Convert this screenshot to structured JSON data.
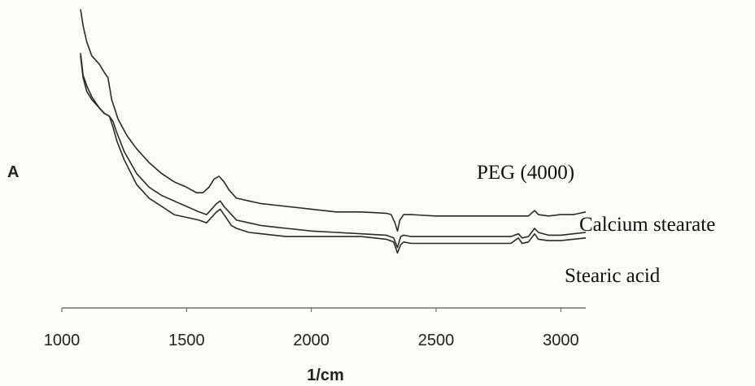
{
  "chart_data": {
    "type": "line",
    "title": "",
    "xlabel": "1/cm",
    "ylabel": "A",
    "xlim": [
      1000,
      3100
    ],
    "xticks": [
      1000,
      1500,
      2000,
      2500,
      3000
    ],
    "grid": false,
    "y_units": "relative absorbance (no y-axis scale printed)",
    "colors": {
      "line": "#2a2a2a",
      "axis": "#555555",
      "background": "#fbfbf8"
    },
    "series": [
      {
        "name": "PEG (4000)",
        "points": [
          [
            1075,
            0.99
          ],
          [
            1085,
            0.93
          ],
          [
            1100,
            0.87
          ],
          [
            1120,
            0.82
          ],
          [
            1150,
            0.79
          ],
          [
            1170,
            0.76
          ],
          [
            1185,
            0.74
          ],
          [
            1200,
            0.66
          ],
          [
            1225,
            0.59
          ],
          [
            1260,
            0.53
          ],
          [
            1300,
            0.48
          ],
          [
            1350,
            0.43
          ],
          [
            1400,
            0.39
          ],
          [
            1450,
            0.36
          ],
          [
            1500,
            0.34
          ],
          [
            1540,
            0.32
          ],
          [
            1565,
            0.32
          ],
          [
            1590,
            0.34
          ],
          [
            1610,
            0.37
          ],
          [
            1630,
            0.38
          ],
          [
            1650,
            0.36
          ],
          [
            1670,
            0.33
          ],
          [
            1700,
            0.3
          ],
          [
            1750,
            0.29
          ],
          [
            1800,
            0.28
          ],
          [
            1900,
            0.27
          ],
          [
            2000,
            0.26
          ],
          [
            2100,
            0.25
          ],
          [
            2200,
            0.25
          ],
          [
            2300,
            0.245
          ],
          [
            2320,
            0.24
          ],
          [
            2335,
            0.21
          ],
          [
            2345,
            0.18
          ],
          [
            2355,
            0.22
          ],
          [
            2370,
            0.24
          ],
          [
            2400,
            0.24
          ],
          [
            2500,
            0.235
          ],
          [
            2600,
            0.235
          ],
          [
            2700,
            0.235
          ],
          [
            2800,
            0.235
          ],
          [
            2870,
            0.235
          ],
          [
            2895,
            0.255
          ],
          [
            2910,
            0.24
          ],
          [
            2950,
            0.235
          ],
          [
            3000,
            0.24
          ],
          [
            3050,
            0.24
          ],
          [
            3100,
            0.25
          ]
        ]
      },
      {
        "name": "Calcium stearate",
        "points": [
          [
            1075,
            0.83
          ],
          [
            1085,
            0.75
          ],
          [
            1100,
            0.71
          ],
          [
            1120,
            0.67
          ],
          [
            1150,
            0.63
          ],
          [
            1170,
            0.61
          ],
          [
            1190,
            0.6
          ],
          [
            1205,
            0.58
          ],
          [
            1220,
            0.54
          ],
          [
            1250,
            0.47
          ],
          [
            1300,
            0.39
          ],
          [
            1350,
            0.34
          ],
          [
            1400,
            0.31
          ],
          [
            1450,
            0.29
          ],
          [
            1500,
            0.27
          ],
          [
            1550,
            0.25
          ],
          [
            1580,
            0.24
          ],
          [
            1600,
            0.26
          ],
          [
            1620,
            0.28
          ],
          [
            1635,
            0.29
          ],
          [
            1650,
            0.27
          ],
          [
            1680,
            0.24
          ],
          [
            1700,
            0.22
          ],
          [
            1750,
            0.21
          ],
          [
            1800,
            0.2
          ],
          [
            1850,
            0.195
          ],
          [
            1900,
            0.19
          ],
          [
            2000,
            0.18
          ],
          [
            2100,
            0.175
          ],
          [
            2200,
            0.17
          ],
          [
            2300,
            0.165
          ],
          [
            2330,
            0.155
          ],
          [
            2345,
            0.12
          ],
          [
            2358,
            0.16
          ],
          [
            2370,
            0.165
          ],
          [
            2400,
            0.16
          ],
          [
            2500,
            0.16
          ],
          [
            2600,
            0.16
          ],
          [
            2700,
            0.16
          ],
          [
            2800,
            0.16
          ],
          [
            2830,
            0.17
          ],
          [
            2845,
            0.155
          ],
          [
            2870,
            0.16
          ],
          [
            2895,
            0.19
          ],
          [
            2910,
            0.175
          ],
          [
            2950,
            0.165
          ],
          [
            3000,
            0.165
          ],
          [
            3050,
            0.17
          ],
          [
            3100,
            0.175
          ]
        ]
      },
      {
        "name": "Stearic acid",
        "points": [
          [
            1075,
            0.82
          ],
          [
            1085,
            0.74
          ],
          [
            1100,
            0.69
          ],
          [
            1120,
            0.66
          ],
          [
            1150,
            0.63
          ],
          [
            1170,
            0.61
          ],
          [
            1190,
            0.6
          ],
          [
            1205,
            0.56
          ],
          [
            1220,
            0.51
          ],
          [
            1250,
            0.44
          ],
          [
            1300,
            0.35
          ],
          [
            1350,
            0.3
          ],
          [
            1400,
            0.27
          ],
          [
            1450,
            0.24
          ],
          [
            1500,
            0.23
          ],
          [
            1550,
            0.22
          ],
          [
            1580,
            0.21
          ],
          [
            1600,
            0.23
          ],
          [
            1620,
            0.25
          ],
          [
            1635,
            0.26
          ],
          [
            1650,
            0.24
          ],
          [
            1680,
            0.2
          ],
          [
            1700,
            0.19
          ],
          [
            1750,
            0.175
          ],
          [
            1800,
            0.17
          ],
          [
            1850,
            0.165
          ],
          [
            1900,
            0.16
          ],
          [
            2000,
            0.16
          ],
          [
            2100,
            0.16
          ],
          [
            2200,
            0.16
          ],
          [
            2300,
            0.15
          ],
          [
            2330,
            0.14
          ],
          [
            2345,
            0.1
          ],
          [
            2358,
            0.13
          ],
          [
            2370,
            0.14
          ],
          [
            2400,
            0.135
          ],
          [
            2500,
            0.135
          ],
          [
            2600,
            0.135
          ],
          [
            2700,
            0.135
          ],
          [
            2800,
            0.135
          ],
          [
            2830,
            0.155
          ],
          [
            2845,
            0.135
          ],
          [
            2870,
            0.14
          ],
          [
            2895,
            0.17
          ],
          [
            2910,
            0.15
          ],
          [
            2950,
            0.145
          ],
          [
            3000,
            0.145
          ],
          [
            3050,
            0.15
          ],
          [
            3100,
            0.155
          ]
        ]
      }
    ]
  }
}
